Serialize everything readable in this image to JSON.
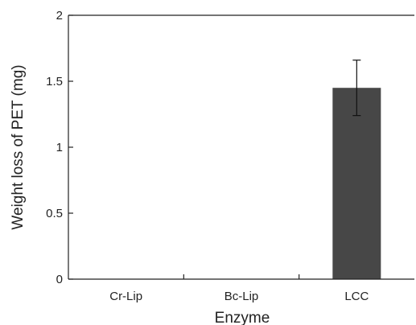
{
  "chart_data": {
    "type": "bar",
    "categories": [
      "Cr-Lip",
      "Bc-Lip",
      "LCC"
    ],
    "values": [
      0,
      0,
      1.45
    ],
    "error": [
      0,
      0,
      0.21
    ],
    "xlabel": "Enzyme",
    "ylabel": "Weight loss of PET (mg)",
    "ylim": [
      0,
      2
    ],
    "yticks": [
      0,
      0.5,
      1,
      1.5,
      2
    ],
    "ytick_labels": [
      "0",
      "0.5",
      "1",
      "1.5",
      "2"
    ],
    "grid": false,
    "legend": "none",
    "colors": {
      "bar": "#474747",
      "axis": "#222222",
      "error_bar": "#111111"
    }
  }
}
